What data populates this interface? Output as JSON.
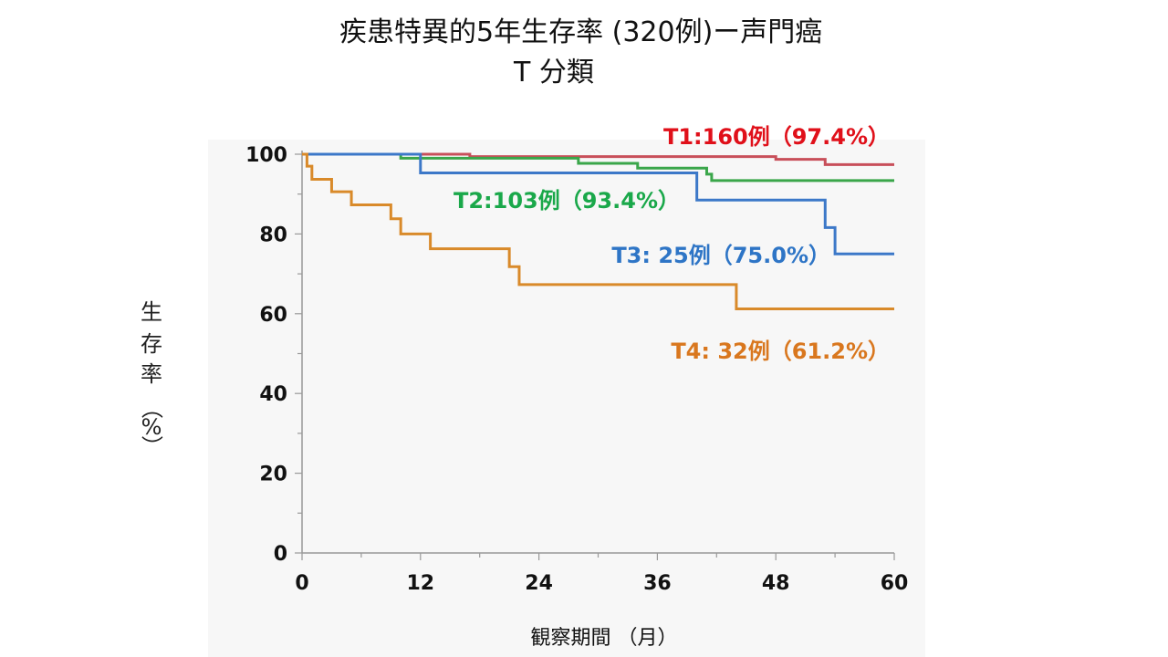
{
  "slide": {
    "title_line1": "疾患特異的5年生存率 (320例)ー声門癌",
    "title_line2": "T 分類"
  },
  "chart_data": {
    "type": "line",
    "title": "疾患特異的5年生存率 (320例)ー声門癌 T 分類",
    "xlabel": "観察期間 （月）",
    "ylabel": "生存率（%）",
    "ylabel_chars": [
      "生",
      "存",
      "率",
      "（",
      "%",
      "）"
    ],
    "xlim": [
      0,
      60
    ],
    "ylim": [
      0,
      100
    ],
    "x_ticks": [
      0,
      12,
      24,
      36,
      48,
      60
    ],
    "y_ticks": [
      0,
      20,
      40,
      60,
      80,
      100
    ],
    "grid": false,
    "series": [
      {
        "name": "T1:160例（97.4%）",
        "color": "#e0101a",
        "line_color": "#c84f5a",
        "steps": [
          [
            0,
            100
          ],
          [
            17,
            99.4
          ],
          [
            48,
            98.7
          ],
          [
            53,
            97.4
          ],
          [
            60,
            97.4
          ]
        ]
      },
      {
        "name": "T2:103例（93.4%）",
        "color": "#1aa84a",
        "line_color": "#3aa64a",
        "steps": [
          [
            0,
            100
          ],
          [
            10,
            99
          ],
          [
            28,
            97.7
          ],
          [
            34,
            96.5
          ],
          [
            41,
            95
          ],
          [
            41.5,
            93.4
          ],
          [
            60,
            93.4
          ]
        ]
      },
      {
        "name": "T3: 25例（75.0%）",
        "color": "#2e75c6",
        "line_color": "#3c78c8",
        "steps": [
          [
            0,
            100
          ],
          [
            12,
            95.3
          ],
          [
            40,
            88.5
          ],
          [
            53,
            81.6
          ],
          [
            54,
            75
          ],
          [
            60,
            75
          ]
        ]
      },
      {
        "name": "T4: 32例（61.2%）",
        "color": "#d9771e",
        "line_color": "#d98a2a",
        "steps": [
          [
            0,
            100
          ],
          [
            0.5,
            97
          ],
          [
            1,
            93.7
          ],
          [
            3,
            90.6
          ],
          [
            5,
            87.3
          ],
          [
            9,
            83.8
          ],
          [
            10,
            80
          ],
          [
            13,
            76.3
          ],
          [
            21,
            71.8
          ],
          [
            22,
            67.3
          ],
          [
            44,
            61.2
          ],
          [
            60,
            61.2
          ]
        ]
      }
    ]
  }
}
